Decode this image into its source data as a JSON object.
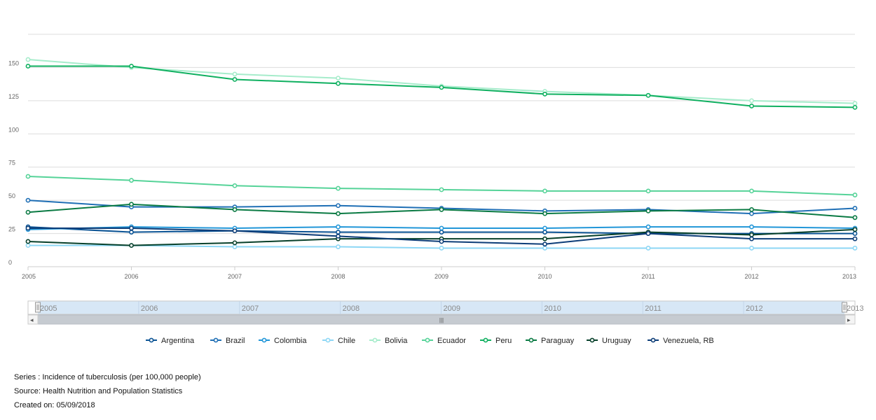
{
  "chart_data": {
    "type": "line",
    "categories": [
      "2005",
      "2006",
      "2007",
      "2008",
      "2009",
      "2010",
      "2011",
      "2012",
      "2013"
    ],
    "ylim": [
      0,
      175
    ],
    "y_ticks": [
      "0",
      "25",
      "50",
      "75",
      "100",
      "125",
      "150"
    ],
    "grid": true,
    "legend_position": "bottom",
    "series": [
      {
        "name": "Argentina",
        "color": "#0b5394",
        "values": [
          30,
          26,
          27,
          26,
          26,
          26,
          25,
          25,
          25
        ]
      },
      {
        "name": "Brazil",
        "color": "#1f6fb5",
        "values": [
          50,
          45,
          45,
          46,
          44,
          42,
          43,
          40,
          44
        ]
      },
      {
        "name": "Colombia",
        "color": "#2196d8",
        "values": [
          28,
          30,
          29,
          30,
          29,
          29,
          30,
          30,
          29
        ]
      },
      {
        "name": "Chile",
        "color": "#8dd7f5",
        "values": [
          16,
          16,
          15,
          15,
          14,
          14,
          14,
          14,
          14
        ]
      },
      {
        "name": "Bolivia",
        "color": "#a6eccb",
        "values": [
          156,
          150,
          145,
          142,
          136,
          132,
          129,
          125,
          123
        ]
      },
      {
        "name": "Ecuador",
        "color": "#55d398",
        "values": [
          68,
          65,
          61,
          59,
          58,
          57,
          57,
          57,
          54
        ]
      },
      {
        "name": "Peru",
        "color": "#0fb060",
        "values": [
          151,
          151,
          141,
          138,
          135,
          130,
          129,
          121,
          120
        ]
      },
      {
        "name": "Paraguay",
        "color": "#0a7a43",
        "values": [
          41,
          47,
          43,
          40,
          43,
          40,
          42,
          43,
          37
        ]
      },
      {
        "name": "Uruguay",
        "color": "#07402a",
        "values": [
          19,
          16,
          18,
          21,
          21,
          21,
          26,
          24,
          28
        ]
      },
      {
        "name": "Venezuela, RB",
        "color": "#0d3d78",
        "values": [
          29,
          29,
          27,
          23,
          19,
          17,
          25,
          21,
          21
        ]
      }
    ]
  },
  "navigator": {
    "labels": [
      "2005",
      "2006",
      "2007",
      "2008",
      "2009",
      "2010",
      "2011",
      "2012",
      "2013"
    ],
    "scroll_left_arrow": "◂",
    "scroll_right_arrow": "▸",
    "scroll_grip": "|||"
  },
  "footer": {
    "series": "Series : Incidence of tuberculosis (per 100,000 people)",
    "source": "Source: Health Nutrition and Population Statistics",
    "created": "Created on: 05/09/2018"
  }
}
